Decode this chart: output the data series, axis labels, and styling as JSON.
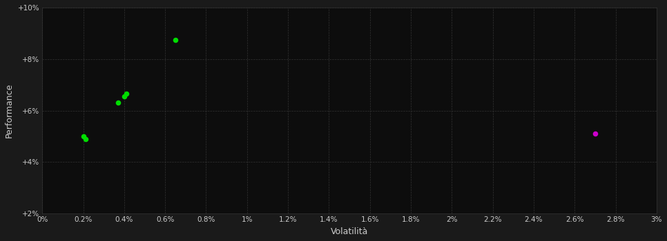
{
  "green_points": [
    [
      0.002,
      5.0
    ],
    [
      0.0021,
      4.9
    ],
    [
      0.0037,
      6.3
    ],
    [
      0.004,
      6.55
    ],
    [
      0.0041,
      6.65
    ],
    [
      0.0065,
      8.75
    ]
  ],
  "magenta_points": [
    [
      0.027,
      5.1
    ]
  ],
  "xlim": [
    0.0,
    0.03
  ],
  "ylim": [
    2.0,
    10.0
  ],
  "xticks": [
    0.0,
    0.002,
    0.004,
    0.006,
    0.008,
    0.01,
    0.012,
    0.014,
    0.016,
    0.018,
    0.02,
    0.022,
    0.024,
    0.026,
    0.028,
    0.03
  ],
  "xtick_labels": [
    "0%",
    "0.2%",
    "0.4%",
    "0.6%",
    "0.8%",
    "1%",
    "1.2%",
    "1.4%",
    "1.6%",
    "1.8%",
    "2%",
    "2.2%",
    "2.4%",
    "2.6%",
    "2.8%",
    "3%"
  ],
  "yticks": [
    2.0,
    4.0,
    6.0,
    8.0,
    10.0
  ],
  "ytick_labels": [
    "+2%",
    "+4%",
    "+6%",
    "+8%",
    "+10%"
  ],
  "xlabel": "Volatilità",
  "ylabel": "Performance",
  "bg_color": "#1a1a1a",
  "plot_bg_color": "#0d0d0d",
  "grid_color": "#333333",
  "green_color": "#00dd00",
  "magenta_color": "#cc00cc",
  "text_color": "#cccccc",
  "marker_size": 30
}
